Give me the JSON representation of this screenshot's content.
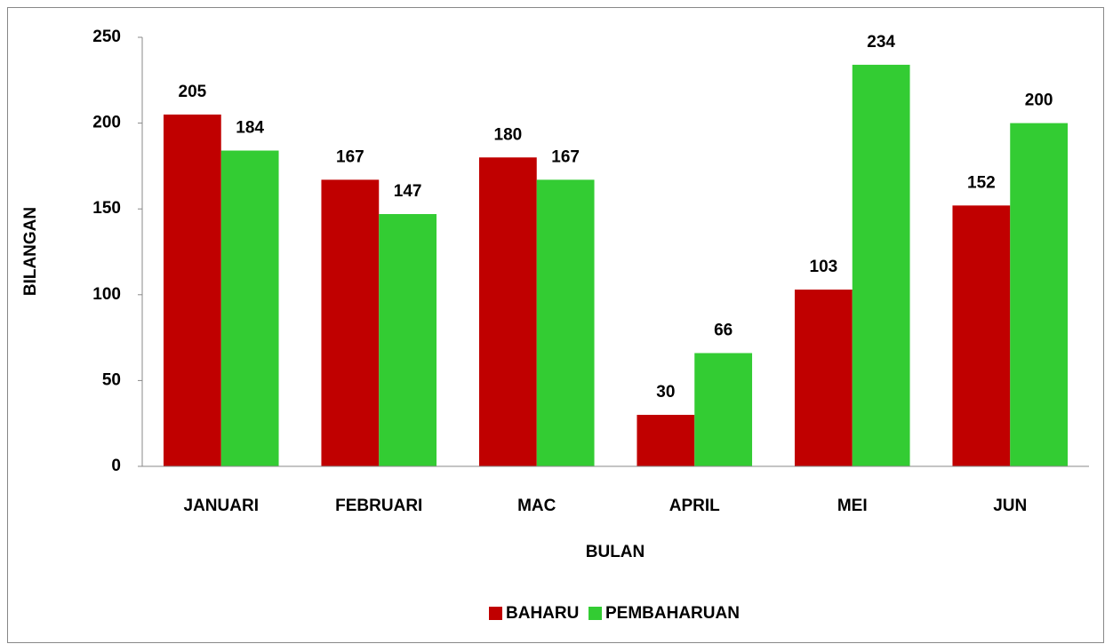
{
  "chart_data": {
    "type": "bar",
    "x_label": "BULAN",
    "y_label": "BILANGAN",
    "categories": [
      "JANUARI",
      "FEBRUARI",
      "MAC",
      "APRIL",
      "MEI",
      "JUN"
    ],
    "series": [
      {
        "name": "BAHARU",
        "color": "#c00000",
        "values": [
          205,
          167,
          180,
          30,
          103,
          152
        ]
      },
      {
        "name": "PEMBAHARUAN",
        "color": "#33cc33",
        "values": [
          184,
          147,
          167,
          66,
          234,
          200
        ]
      }
    ],
    "ylim": [
      0,
      250
    ],
    "yticks": [
      0,
      50,
      100,
      150,
      200,
      250
    ],
    "grid": false,
    "legend": "bottom",
    "data_labels": true
  }
}
